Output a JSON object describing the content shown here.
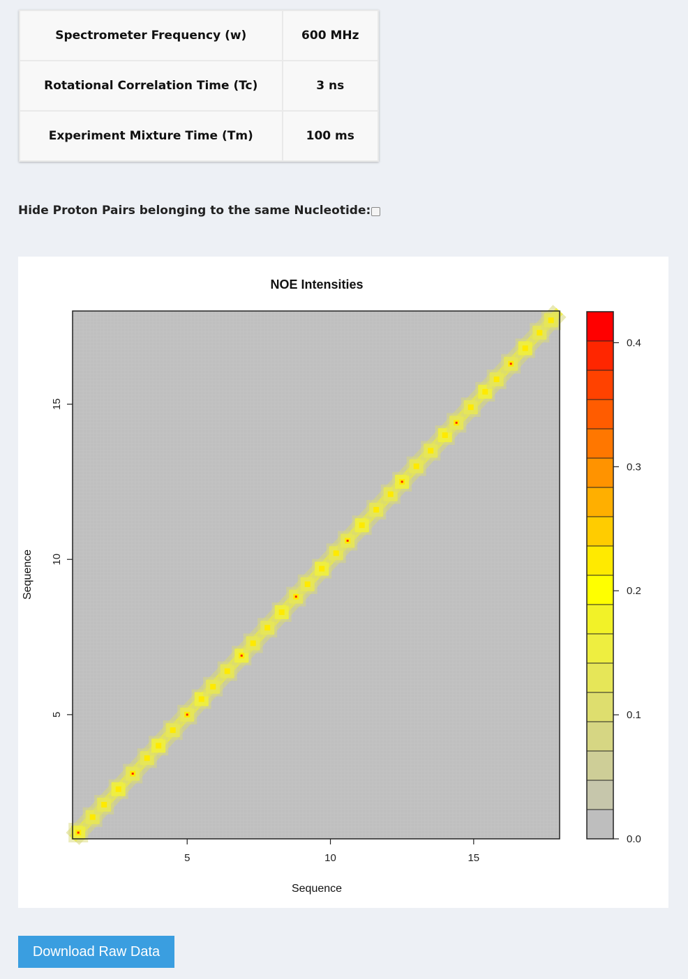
{
  "parameters": [
    {
      "label": "Spectrometer Frequency (w)",
      "value": "600 MHz"
    },
    {
      "label": "Rotational Correlation Time (Tc)",
      "value": "3 ns"
    },
    {
      "label": "Experiment Mixture Time (Tm)",
      "value": "100 ms"
    }
  ],
  "hide_option": {
    "label": "Hide Proton Pairs belonging to the same Nucleotide:",
    "checked": false
  },
  "download_button": {
    "label": "Download Raw Data"
  },
  "chart_data": {
    "type": "heatmap",
    "title": "NOE Intensities",
    "xlabel": "Sequence",
    "ylabel": "Sequence",
    "xlim": [
      1,
      18
    ],
    "ylim": [
      1,
      18
    ],
    "xticks": [
      "5",
      "10",
      "15"
    ],
    "yticks": [
      "5",
      "10",
      "15"
    ],
    "xtick_values": [
      5,
      10,
      15
    ],
    "ytick_values": [
      5,
      10,
      15
    ],
    "grid": false,
    "background_value": 0.0,
    "diagonal_value_range": [
      0.1,
      0.2
    ],
    "diagonal_peak_value": 0.4,
    "diagonal_blocks": [
      1.2,
      1.7,
      2.1,
      2.6,
      3.1,
      3.6,
      4.0,
      4.5,
      5.0,
      5.5,
      5.9,
      6.4,
      6.9,
      7.3,
      7.8,
      8.3,
      8.8,
      9.2,
      9.7,
      10.2,
      10.6,
      11.1,
      11.6,
      12.1,
      12.5,
      13.0,
      13.5,
      14.0,
      14.4,
      14.9,
      15.4,
      15.8,
      16.3,
      16.8,
      17.3,
      17.7
    ],
    "colorbar": {
      "range": [
        0.0,
        0.425
      ],
      "ticks": [
        "0.0",
        "0.1",
        "0.2",
        "0.3",
        "0.4"
      ],
      "tick_values": [
        0.0,
        0.1,
        0.2,
        0.3,
        0.4
      ],
      "colors": [
        "#bebebe",
        "#c6c6ab",
        "#cece97",
        "#d6d683",
        "#dede6e",
        "#e6e658",
        "#eeee40",
        "#f2f228",
        "#ffff00",
        "#ffea00",
        "#ffcc00",
        "#ffaf00",
        "#ff9300",
        "#ff7700",
        "#ff5c00",
        "#ff4200",
        "#ff2600",
        "#ff0000"
      ]
    }
  }
}
